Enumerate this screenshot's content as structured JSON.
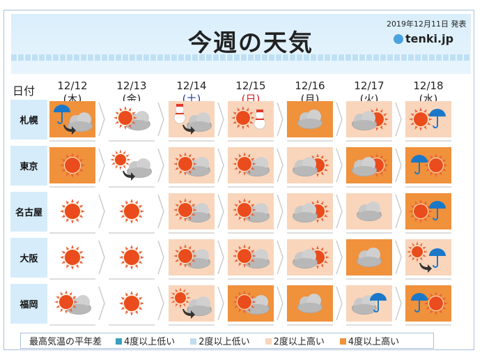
{
  "header": {
    "title": "今週の天気",
    "issued": "2019年12月11日 発表",
    "logo": "tenki.jp",
    "date_label": "日付"
  },
  "days": [
    {
      "date": "12/12",
      "dow": "(木)",
      "color": "#222"
    },
    {
      "date": "12/13",
      "dow": "(金)",
      "color": "#222"
    },
    {
      "date": "12/14",
      "dow": "(土)",
      "color": "#1a3ca8"
    },
    {
      "date": "12/15",
      "dow": "(日)",
      "color": "#d21c1c"
    },
    {
      "date": "12/16",
      "dow": "(月)",
      "color": "#222"
    },
    {
      "date": "12/17",
      "dow": "(火)",
      "color": "#222"
    },
    {
      "date": "12/18",
      "dow": "(水)",
      "color": "#222"
    }
  ],
  "levels": {
    "low4": "#3a9fc0",
    "low2": "#c0dcf0",
    "high2": "#f9d5bb",
    "high4": "#f0913c",
    "normal": "#ffffff"
  },
  "cities": [
    {
      "name": "札幌",
      "forecast": [
        {
          "bg": "high4",
          "icon": "rain-then-cloud"
        },
        {
          "bg": "normal",
          "icon": "sun-cloud"
        },
        {
          "bg": "high2",
          "icon": "snow-then-cloud"
        },
        {
          "bg": "high2",
          "icon": "sun-snow"
        },
        {
          "bg": "high4",
          "icon": "cloud"
        },
        {
          "bg": "high2",
          "icon": "cloud-sun"
        },
        {
          "bg": "high2",
          "icon": "sun-rain"
        }
      ]
    },
    {
      "name": "東京",
      "forecast": [
        {
          "bg": "high4",
          "icon": "sun"
        },
        {
          "bg": "normal",
          "icon": "sun-then-cloud"
        },
        {
          "bg": "high2",
          "icon": "sun-cloud"
        },
        {
          "bg": "high2",
          "icon": "sun-cloud"
        },
        {
          "bg": "high2",
          "icon": "cloud-sun"
        },
        {
          "bg": "high4",
          "icon": "cloud-sun"
        },
        {
          "bg": "high4",
          "icon": "rain-sun"
        }
      ]
    },
    {
      "name": "名古屋",
      "forecast": [
        {
          "bg": "normal",
          "icon": "sun"
        },
        {
          "bg": "normal",
          "icon": "sun"
        },
        {
          "bg": "high2",
          "icon": "sun-cloud"
        },
        {
          "bg": "high2",
          "icon": "sun-cloud"
        },
        {
          "bg": "high2",
          "icon": "cloud-sun"
        },
        {
          "bg": "high2",
          "icon": "cloud"
        },
        {
          "bg": "high4",
          "icon": "sun-rain"
        }
      ]
    },
    {
      "name": "大阪",
      "forecast": [
        {
          "bg": "normal",
          "icon": "sun"
        },
        {
          "bg": "normal",
          "icon": "sun"
        },
        {
          "bg": "high2",
          "icon": "sun-cloud"
        },
        {
          "bg": "high2",
          "icon": "sun-cloud"
        },
        {
          "bg": "high2",
          "icon": "cloud-sun"
        },
        {
          "bg": "high4",
          "icon": "cloud"
        },
        {
          "bg": "high2",
          "icon": "sun-then-rain"
        }
      ]
    },
    {
      "name": "福岡",
      "forecast": [
        {
          "bg": "normal",
          "icon": "sun-cloud"
        },
        {
          "bg": "normal",
          "icon": "sun"
        },
        {
          "bg": "high2",
          "icon": "sun-then-cloud"
        },
        {
          "bg": "high4",
          "icon": "sun-cloud"
        },
        {
          "bg": "high4",
          "icon": "cloud"
        },
        {
          "bg": "high2",
          "icon": "cloud-rain"
        },
        {
          "bg": "high4",
          "icon": "rain-sun"
        }
      ]
    }
  ],
  "legend": {
    "title": "最高気温の平年差",
    "items": [
      {
        "label": "4度以上低い",
        "level": "low4"
      },
      {
        "label": "2度以上低い",
        "level": "low2"
      },
      {
        "label": "2度以上高い",
        "level": "high2"
      },
      {
        "label": "4度以上高い",
        "level": "high4"
      }
    ]
  }
}
